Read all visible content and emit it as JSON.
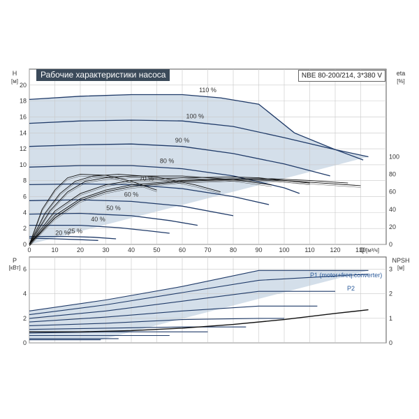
{
  "header": {
    "title": "Рабочие характеристики насоса",
    "model": "NBE 80-200/214, 3*380 V"
  },
  "colors": {
    "curve": "#1f3a68",
    "area_fill": "#c6d4e3",
    "eta": "#111111",
    "grid": "#c8c8c8"
  },
  "chart_data": [
    {
      "type": "line",
      "panel": "top",
      "y_label_left": "H",
      "y_unit_left": "[м]",
      "y_label_right": "eta",
      "y_unit_right": "[%]",
      "x_label": "Q",
      "x_unit": "[м³/ч]",
      "xlim": [
        0,
        140
      ],
      "ylim_left": [
        0,
        22
      ],
      "ylim_right": [
        0,
        200
      ],
      "x_ticks": [
        "0",
        "10",
        "20",
        "30",
        "40",
        "50",
        "60",
        "70",
        "80",
        "90",
        "100",
        "110",
        "120",
        "130"
      ],
      "y_ticks_left": [
        "0",
        "2",
        "4",
        "6",
        "8",
        "10",
        "12",
        "14",
        "16",
        "18",
        "20"
      ],
      "y_ticks_right": [
        "0",
        "20",
        "40",
        "60",
        "80",
        "100"
      ],
      "grid": true,
      "series": [
        {
          "name": "110 %",
          "label_at": [
            70,
            19.1
          ],
          "points": [
            [
              0,
              18.2
            ],
            [
              20,
              18.6
            ],
            [
              40,
              18.8
            ],
            [
              60,
              18.8
            ],
            [
              75,
              18.4
            ],
            [
              90,
              17.6
            ],
            [
              104,
              14.0
            ],
            [
              120,
              11.9
            ],
            [
              133,
              11.0
            ]
          ]
        },
        {
          "name": "100 %",
          "label_at": [
            65,
            15.8
          ],
          "points": [
            [
              0,
              15.2
            ],
            [
              20,
              15.5
            ],
            [
              40,
              15.6
            ],
            [
              60,
              15.5
            ],
            [
              80,
              14.8
            ],
            [
              100,
              13.4
            ],
            [
              120,
              11.9
            ],
            [
              131,
              10.6
            ]
          ]
        },
        {
          "name": "90 %",
          "label_at": [
            60,
            12.8
          ],
          "points": [
            [
              0,
              12.3
            ],
            [
              20,
              12.5
            ],
            [
              40,
              12.6
            ],
            [
              60,
              12.3
            ],
            [
              80,
              11.4
            ],
            [
              100,
              10.1
            ],
            [
              118,
              8.6
            ]
          ]
        },
        {
          "name": "80 %",
          "label_at": [
            54,
            10.2
          ],
          "points": [
            [
              0,
              9.7
            ],
            [
              20,
              9.9
            ],
            [
              40,
              9.9
            ],
            [
              60,
              9.5
            ],
            [
              80,
              8.6
            ],
            [
              100,
              7.1
            ],
            [
              106,
              6.4
            ]
          ]
        },
        {
          "name": "70 %",
          "label_at": [
            46,
            8.0
          ],
          "points": [
            [
              0,
              7.5
            ],
            [
              20,
              7.6
            ],
            [
              40,
              7.5
            ],
            [
              60,
              7.0
            ],
            [
              80,
              6.0
            ],
            [
              94,
              5.0
            ]
          ]
        },
        {
          "name": "60 %",
          "label_at": [
            40,
            6.0
          ],
          "points": [
            [
              0,
              5.5
            ],
            [
              20,
              5.6
            ],
            [
              40,
              5.4
            ],
            [
              60,
              4.8
            ],
            [
              80,
              3.6
            ]
          ]
        },
        {
          "name": "50 %",
          "label_at": [
            33,
            4.3
          ],
          "points": [
            [
              0,
              3.8
            ],
            [
              20,
              3.9
            ],
            [
              40,
              3.6
            ],
            [
              55,
              3.0
            ],
            [
              66,
              2.4
            ]
          ]
        },
        {
          "name": "40 %",
          "label_at": [
            27,
            2.9
          ],
          "points": [
            [
              0,
              2.4
            ],
            [
              20,
              2.4
            ],
            [
              35,
              2.1
            ],
            [
              47,
              1.7
            ],
            [
              55,
              1.4
            ]
          ]
        },
        {
          "name": "25 %",
          "label_at": [
            18,
            1.4
          ],
          "points": [
            [
              0,
              1.0
            ],
            [
              15,
              1.0
            ],
            [
              25,
              0.9
            ],
            [
              34,
              0.7
            ]
          ]
        },
        {
          "name": "20 %",
          "label_at": [
            13,
            1.2
          ],
          "points": [
            [
              0,
              0.8
            ],
            [
              10,
              0.7
            ],
            [
              20,
              0.6
            ],
            [
              27,
              0.5
            ]
          ]
        }
      ],
      "eta_curves": [
        {
          "points": [
            [
              0,
              0
            ],
            [
              10,
              30
            ],
            [
              20,
              50
            ],
            [
              30,
              60
            ],
            [
              40,
              66
            ],
            [
              60,
              72
            ],
            [
              80,
              74
            ],
            [
              90,
              74
            ],
            [
              100,
              73
            ],
            [
              110,
              71
            ],
            [
              120,
              69
            ],
            [
              130,
              67
            ]
          ]
        },
        {
          "points": [
            [
              0,
              0
            ],
            [
              10,
              33
            ],
            [
              20,
              52
            ],
            [
              30,
              62
            ],
            [
              40,
              68
            ],
            [
              60,
              73
            ],
            [
              80,
              75
            ],
            [
              95,
              75
            ],
            [
              110,
              73
            ],
            [
              120,
              71
            ],
            [
              125,
              70
            ]
          ]
        },
        {
          "points": [
            [
              0,
              0
            ],
            [
              10,
              38
            ],
            [
              20,
              58
            ],
            [
              30,
              68
            ],
            [
              40,
              73
            ],
            [
              60,
              76
            ],
            [
              80,
              77
            ],
            [
              90,
              76
            ],
            [
              100,
              73
            ],
            [
              110,
              70
            ]
          ]
        },
        {
          "points": [
            [
              0,
              0
            ],
            [
              8,
              38
            ],
            [
              15,
              60
            ],
            [
              22,
              72
            ],
            [
              30,
              76
            ],
            [
              40,
              78
            ],
            [
              60,
              78
            ],
            [
              80,
              74
            ],
            [
              95,
              68
            ]
          ]
        },
        {
          "points": [
            [
              0,
              0
            ],
            [
              6,
              35
            ],
            [
              12,
              58
            ],
            [
              18,
              72
            ],
            [
              25,
              78
            ],
            [
              35,
              80
            ],
            [
              50,
              77
            ],
            [
              65,
              68
            ],
            [
              75,
              60
            ]
          ]
        },
        {
          "points": [
            [
              0,
              0
            ],
            [
              5,
              40
            ],
            [
              10,
              62
            ],
            [
              15,
              76
            ],
            [
              20,
              80
            ],
            [
              30,
              79
            ],
            [
              40,
              72
            ],
            [
              50,
              62
            ]
          ]
        }
      ]
    },
    {
      "type": "line",
      "panel": "bottom",
      "y_label_left": "P",
      "y_unit_left": "[кВт]",
      "y_label_right": "NPSH",
      "y_unit_right": "[м]",
      "xlim": [
        0,
        140
      ],
      "ylim_left": [
        0,
        7
      ],
      "ylim_right": [
        0,
        3.5
      ],
      "y_ticks_left": [
        "0",
        "2",
        "4",
        "6"
      ],
      "y_ticks_right": [
        "0",
        "1",
        "2",
        "3"
      ],
      "legend_labels": [
        {
          "name": "P1 (motor+freq.converter)",
          "anchor": [
            133,
            5.75
          ]
        },
        {
          "name": "P2",
          "anchor": [
            133,
            5.2
          ]
        }
      ],
      "power_curves": [
        {
          "points": [
            [
              0,
              2.6
            ],
            [
              30,
              3.5
            ],
            [
              60,
              4.6
            ],
            [
              90,
              5.9
            ],
            [
              133,
              5.9
            ]
          ]
        },
        {
          "points": [
            [
              0,
              2.3
            ],
            [
              30,
              3.1
            ],
            [
              60,
              4.1
            ],
            [
              90,
              5.1
            ],
            [
              133,
              5.6
            ]
          ]
        },
        {
          "points": [
            [
              0,
              2.0
            ],
            [
              30,
              2.6
            ],
            [
              60,
              3.4
            ],
            [
              90,
              4.2
            ],
            [
              120,
              4.2
            ]
          ]
        },
        {
          "points": [
            [
              0,
              1.7
            ],
            [
              30,
              2.1
            ],
            [
              60,
              2.6
            ],
            [
              90,
              3.0
            ],
            [
              113,
              3.0
            ]
          ]
        },
        {
          "points": [
            [
              0,
              1.4
            ],
            [
              30,
              1.6
            ],
            [
              60,
              1.9
            ],
            [
              90,
              2.0
            ],
            [
              100,
              2.0
            ]
          ]
        },
        {
          "points": [
            [
              0,
              1.1
            ],
            [
              30,
              1.2
            ],
            [
              60,
              1.3
            ],
            [
              85,
              1.3
            ]
          ]
        },
        {
          "points": [
            [
              0,
              0.8
            ],
            [
              30,
              0.9
            ],
            [
              55,
              0.9
            ],
            [
              70,
              0.9
            ]
          ]
        },
        {
          "points": [
            [
              0,
              0.6
            ],
            [
              25,
              0.6
            ],
            [
              45,
              0.6
            ],
            [
              55,
              0.6
            ]
          ]
        },
        {
          "points": [
            [
              0,
              0.35
            ],
            [
              20,
              0.35
            ],
            [
              35,
              0.35
            ]
          ]
        },
        {
          "points": [
            [
              0,
              0.25
            ],
            [
              15,
              0.25
            ],
            [
              28,
              0.25
            ]
          ]
        }
      ],
      "npsh_curve": {
        "points": [
          [
            0,
            0.45
          ],
          [
            20,
            0.45
          ],
          [
            40,
            0.5
          ],
          [
            60,
            0.6
          ],
          [
            80,
            0.75
          ],
          [
            100,
            0.95
          ],
          [
            120,
            1.2
          ],
          [
            133,
            1.35
          ]
        ]
      }
    }
  ]
}
